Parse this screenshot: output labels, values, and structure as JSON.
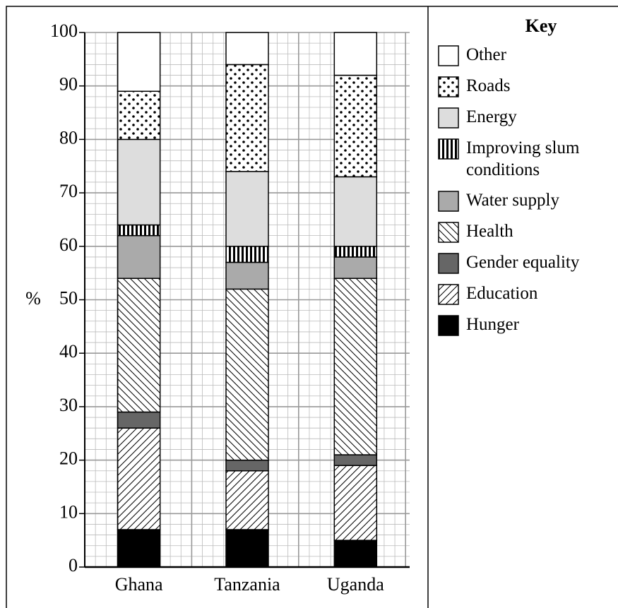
{
  "chart_data": {
    "type": "stacked-bar",
    "categories": [
      "Ghana",
      "Tanzania",
      "Uganda"
    ],
    "ylabel": "%",
    "ylim": [
      0,
      100
    ],
    "yticks": [
      0,
      10,
      20,
      30,
      40,
      50,
      60,
      70,
      80,
      90,
      100
    ],
    "grid": true,
    "legend_title": "Key",
    "series": [
      {
        "name": "Hunger",
        "color": "#000000",
        "pattern": "solid",
        "values": [
          7,
          7,
          5
        ]
      },
      {
        "name": "Education",
        "color": "#ffffff",
        "pattern": "slash",
        "values": [
          19,
          11,
          14
        ]
      },
      {
        "name": "Gender equality",
        "color": "#666666",
        "pattern": "solid",
        "values": [
          3,
          2,
          2
        ]
      },
      {
        "name": "Health",
        "color": "#ffffff",
        "pattern": "backslash",
        "values": [
          25,
          32,
          33
        ]
      },
      {
        "name": "Water supply",
        "color": "#aaaaaa",
        "pattern": "solid",
        "values": [
          8,
          5,
          4
        ]
      },
      {
        "name": "Improving slum conditions",
        "color": "#ffffff",
        "pattern": "vlines",
        "values": [
          2,
          3,
          2
        ]
      },
      {
        "name": "Energy",
        "color": "#dddddd",
        "pattern": "solid",
        "values": [
          16,
          14,
          13
        ]
      },
      {
        "name": "Roads",
        "color": "#ffffff",
        "pattern": "dots",
        "values": [
          9,
          20,
          19
        ]
      },
      {
        "name": "Other",
        "color": "#ffffff",
        "pattern": "solid",
        "values": [
          11,
          6,
          8
        ]
      }
    ]
  }
}
